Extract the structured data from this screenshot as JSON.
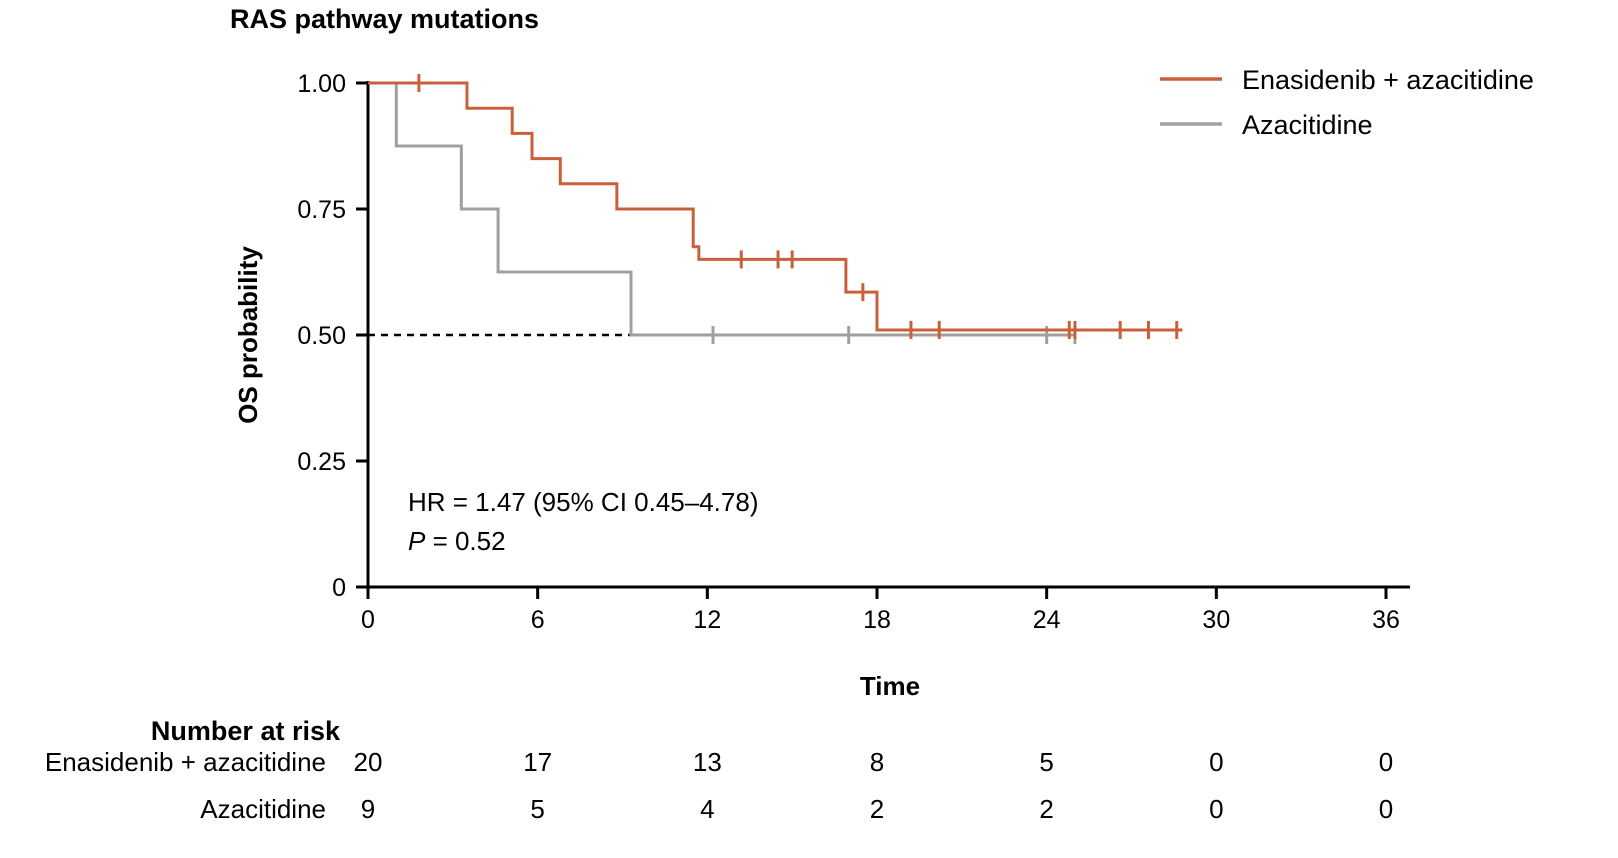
{
  "chart_data": {
    "type": "line",
    "subtype": "kaplan-meier-step",
    "title": "RAS pathway mutations",
    "xlabel": "Time",
    "ylabel": "OS probability",
    "xlim": [
      0,
      36
    ],
    "ylim": [
      0,
      1
    ],
    "xticks": [
      0,
      6,
      12,
      18,
      24,
      30,
      36
    ],
    "yticks": [
      0,
      0.25,
      0.5,
      0.75,
      1.0
    ],
    "ytick_labels": [
      "0",
      "0.25",
      "0.50",
      "0.75",
      "1.00"
    ],
    "grid": false,
    "legend_position": "top-right",
    "series": [
      {
        "name": "Enasidenib + azacitidine",
        "color": "#C8603C",
        "steps": [
          [
            0,
            1.0
          ],
          [
            3.5,
            0.95
          ],
          [
            5.1,
            0.9
          ],
          [
            5.8,
            0.85
          ],
          [
            6.8,
            0.8
          ],
          [
            8.8,
            0.75
          ],
          [
            11.5,
            0.675
          ],
          [
            11.7,
            0.65
          ],
          [
            16.9,
            0.585
          ],
          [
            18.0,
            0.51
          ]
        ],
        "end": 28.8,
        "censored": [
          [
            1.8,
            1.0
          ],
          [
            13.2,
            0.65
          ],
          [
            14.5,
            0.65
          ],
          [
            15.0,
            0.65
          ],
          [
            17.5,
            0.585
          ],
          [
            19.2,
            0.51
          ],
          [
            20.2,
            0.51
          ],
          [
            24.8,
            0.51
          ],
          [
            25.0,
            0.51
          ],
          [
            26.6,
            0.51
          ],
          [
            27.6,
            0.51
          ],
          [
            28.6,
            0.51
          ]
        ]
      },
      {
        "name": "Azacitidine",
        "color": "#A0A0A0",
        "steps": [
          [
            0,
            1.0
          ],
          [
            1.0,
            0.875
          ],
          [
            3.3,
            0.75
          ],
          [
            4.6,
            0.625
          ],
          [
            9.3,
            0.5
          ]
        ],
        "end": 25.0,
        "censored": [
          [
            12.2,
            0.5
          ],
          [
            17.0,
            0.5
          ],
          [
            24.0,
            0.5
          ],
          [
            25.0,
            0.5
          ]
        ]
      }
    ],
    "median_line": {
      "y": 0.5,
      "x_end": 9.3,
      "style": "dashed"
    },
    "annotations": {
      "hr": "HR = 1.47 (95% CI 0.45–4.78)",
      "p_label": "P",
      "p_value": " = 0.52"
    },
    "risk_table": {
      "title": "Number at risk",
      "times": [
        0,
        6,
        12,
        18,
        24,
        30,
        36
      ],
      "rows": [
        {
          "name": "Enasidenib + azacitidine",
          "values": [
            "20",
            "17",
            "13",
            "8",
            "5",
            "0",
            "0"
          ]
        },
        {
          "name": "Azacitidine",
          "values": [
            "9",
            "5",
            "4",
            "2",
            "2",
            "0",
            "0"
          ]
        }
      ]
    }
  }
}
